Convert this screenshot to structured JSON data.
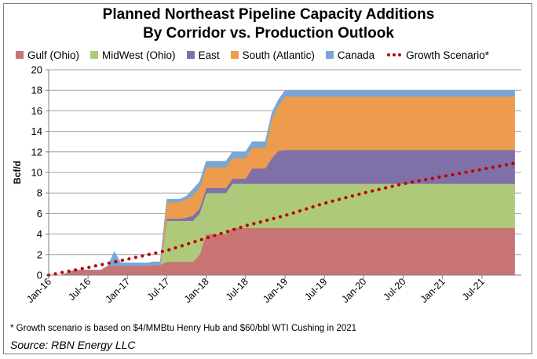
{
  "title_line1": "Planned Northeast Pipeline Capacity Additions",
  "title_line2": "By Corridor vs. Production Outlook",
  "footnote": "* Growth scenario is based on $4/MMBtu Henry Hub and $60/bbl WTI Cushing in 2021",
  "source": "Source: RBN Energy LLC",
  "chart_data": {
    "type": "area",
    "stacked": true,
    "ylabel": "Bcf/d",
    "xlabel": "",
    "ylim": [
      0,
      20
    ],
    "yticks": [
      0,
      2,
      4,
      6,
      8,
      10,
      12,
      14,
      16,
      18,
      20
    ],
    "xlim": [
      0,
      72
    ],
    "xtick_labels": [
      "Jan-16",
      "Jul-16",
      "Jan-17",
      "Jul-17",
      "Jan-18",
      "Jul-18",
      "Jan-19",
      "Jul-19",
      "Jan-20",
      "Jul-20",
      "Jan-21",
      "Jul-21"
    ],
    "xtick_months": [
      0,
      6,
      12,
      18,
      24,
      30,
      36,
      42,
      48,
      54,
      60,
      66
    ],
    "grid": "horizontal",
    "legend_position": "top",
    "x_months": [
      0,
      1,
      2,
      3,
      4,
      5,
      6,
      7,
      8,
      9,
      10,
      11,
      12,
      13,
      14,
      15,
      16,
      17,
      18,
      19,
      20,
      21,
      22,
      23,
      24,
      25,
      26,
      27,
      28,
      29,
      30,
      31,
      32,
      33,
      34,
      35,
      36,
      37,
      38,
      39,
      40,
      41,
      42,
      43,
      44,
      45,
      46,
      47,
      48,
      49,
      50,
      51,
      52,
      53,
      54,
      55,
      56,
      57,
      58,
      59,
      60,
      61,
      62,
      63,
      64,
      65,
      66,
      67,
      68,
      69,
      70,
      71
    ],
    "series": [
      {
        "name": "Gulf (Ohio)",
        "color": "#c87474",
        "values": [
          0,
          0,
          0,
          0.3,
          0.5,
          0.5,
          0.5,
          0.5,
          0.5,
          0.9,
          0.9,
          0.9,
          0.9,
          0.9,
          0.9,
          0.9,
          1.0,
          1.0,
          1.3,
          1.3,
          1.3,
          1.3,
          1.3,
          2.0,
          4.0,
          4.0,
          4.0,
          4.0,
          4.6,
          4.6,
          4.6,
          4.6,
          4.6,
          4.6,
          4.6,
          4.6,
          4.6,
          4.6,
          4.6,
          4.6,
          4.6,
          4.6,
          4.6,
          4.6,
          4.6,
          4.6,
          4.6,
          4.6,
          4.6,
          4.6,
          4.6,
          4.6,
          4.6,
          4.6,
          4.6,
          4.6,
          4.6,
          4.6,
          4.6,
          4.6,
          4.6,
          4.6,
          4.6,
          4.6,
          4.6,
          4.6,
          4.6,
          4.6,
          4.6,
          4.6,
          4.6,
          4.6
        ]
      },
      {
        "name": "MidWest (Ohio)",
        "color": "#aec97a",
        "values": [
          0,
          0,
          0,
          0,
          0,
          0,
          0,
          0,
          0,
          0,
          0,
          0,
          0,
          0,
          0,
          0,
          0,
          0,
          4.0,
          4.0,
          4.0,
          4.0,
          4.0,
          4.0,
          4.0,
          4.0,
          4.0,
          4.0,
          4.3,
          4.3,
          4.3,
          4.3,
          4.3,
          4.3,
          4.3,
          4.3,
          4.3,
          4.3,
          4.3,
          4.3,
          4.3,
          4.3,
          4.3,
          4.3,
          4.3,
          4.3,
          4.3,
          4.3,
          4.3,
          4.3,
          4.3,
          4.3,
          4.3,
          4.3,
          4.3,
          4.3,
          4.3,
          4.3,
          4.3,
          4.3,
          4.3,
          4.3,
          4.3,
          4.3,
          4.3,
          4.3,
          4.3,
          4.3,
          4.3,
          4.3,
          4.3,
          4.3
        ]
      },
      {
        "name": "East",
        "color": "#8070a8",
        "values": [
          0,
          0,
          0,
          0,
          0,
          0,
          0,
          0,
          0,
          0,
          0,
          0,
          0,
          0,
          0,
          0,
          0,
          0,
          0.2,
          0.2,
          0.2,
          0.3,
          0.5,
          0.5,
          0.5,
          0.5,
          0.5,
          0.5,
          0.5,
          0.5,
          0.5,
          1.5,
          1.5,
          1.5,
          2.5,
          3.2,
          3.3,
          3.3,
          3.3,
          3.3,
          3.3,
          3.3,
          3.3,
          3.3,
          3.3,
          3.3,
          3.3,
          3.3,
          3.3,
          3.3,
          3.3,
          3.3,
          3.3,
          3.3,
          3.3,
          3.3,
          3.3,
          3.3,
          3.3,
          3.3,
          3.3,
          3.3,
          3.3,
          3.3,
          3.3,
          3.3,
          3.3,
          3.3,
          3.3,
          3.3,
          3.3,
          3.3
        ]
      },
      {
        "name": "South (Atlantic)",
        "color": "#ec9c4c",
        "values": [
          0,
          0,
          0,
          0,
          0,
          0,
          0,
          0,
          0,
          0,
          0,
          0,
          0,
          0,
          0,
          0,
          0,
          0,
          1.6,
          1.6,
          1.6,
          1.8,
          2.0,
          2.0,
          2.0,
          2.0,
          2.0,
          2.0,
          2.0,
          2.0,
          2.0,
          2.0,
          2.0,
          2.0,
          3.8,
          4.4,
          5.2,
          5.2,
          5.2,
          5.2,
          5.2,
          5.2,
          5.2,
          5.2,
          5.2,
          5.2,
          5.2,
          5.2,
          5.2,
          5.2,
          5.2,
          5.2,
          5.2,
          5.2,
          5.2,
          5.2,
          5.2,
          5.2,
          5.2,
          5.2,
          5.2,
          5.2,
          5.2,
          5.2,
          5.2,
          5.2,
          5.2,
          5.2,
          5.2,
          5.2,
          5.2,
          5.2
        ]
      },
      {
        "name": "Canada",
        "color": "#79a6d5",
        "values": [
          0,
          0,
          0,
          0,
          0,
          0,
          0,
          0,
          0,
          0,
          1.4,
          0.3,
          0.3,
          0.3,
          0.3,
          0.3,
          0.3,
          0.3,
          0.3,
          0.3,
          0.3,
          0.3,
          0.6,
          0.6,
          0.6,
          0.6,
          0.6,
          0.6,
          0.6,
          0.6,
          0.6,
          0.6,
          0.6,
          0.6,
          0.6,
          0.6,
          0.6,
          0.6,
          0.6,
          0.6,
          0.6,
          0.6,
          0.6,
          0.6,
          0.6,
          0.6,
          0.6,
          0.6,
          0.6,
          0.6,
          0.6,
          0.6,
          0.6,
          0.6,
          0.6,
          0.6,
          0.6,
          0.6,
          0.6,
          0.6,
          0.6,
          0.6,
          0.6,
          0.6,
          0.6,
          0.6,
          0.6,
          0.6,
          0.6,
          0.6,
          0.6,
          0.6
        ]
      },
      {
        "name": "Growth Scenario*",
        "color": "#c00000",
        "type": "dotted-line",
        "x_months": [
          0,
          6,
          12,
          18,
          24,
          30,
          36,
          42,
          48,
          54,
          60,
          66,
          71
        ],
        "values": [
          0,
          0.75,
          1.55,
          2.4,
          3.6,
          4.8,
          5.8,
          7.0,
          8.0,
          8.9,
          9.6,
          10.3,
          10.9
        ]
      }
    ]
  }
}
